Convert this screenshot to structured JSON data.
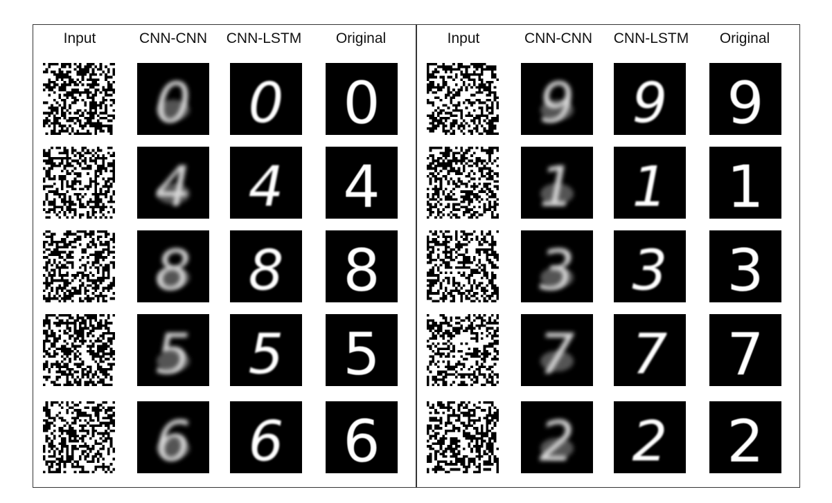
{
  "columns": [
    "Input",
    "CNN-CNN",
    "CNN-LSTM",
    "Original"
  ],
  "panels": [
    {
      "digits": [
        "0",
        "4",
        "8",
        "5",
        "6"
      ]
    },
    {
      "digits": [
        "9",
        "1",
        "3",
        "7",
        "2"
      ]
    }
  ],
  "colors": {
    "background": "#ffffff",
    "tile": "#000000",
    "digit": "#ffffff",
    "border": "#333333"
  }
}
